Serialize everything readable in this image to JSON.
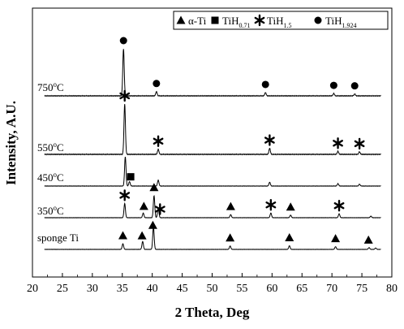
{
  "chart_data": {
    "type": "line",
    "xlabel": "2 Theta, Deg",
    "ylabel": "Intensity, A.U.",
    "xlim": [
      20,
      80
    ],
    "xticks": [
      20,
      25,
      30,
      35,
      40,
      45,
      50,
      55,
      60,
      65,
      70,
      75,
      80
    ],
    "grid": false,
    "legend_position": "top-right",
    "legend": [
      {
        "symbol": "triangle",
        "phase": "α-Ti",
        "label": "α-Ti"
      },
      {
        "symbol": "square",
        "phase": "TiH0.71",
        "base": "TiH",
        "sub": "0.71"
      },
      {
        "symbol": "asterisk",
        "phase": "TiH1.5",
        "base": "TiH",
        "sub": "1.5"
      },
      {
        "symbol": "circle",
        "phase": "TiH1.924",
        "base": "TiH",
        "sub": "1.924"
      }
    ],
    "series": [
      {
        "name": "750°C",
        "label_base": "750",
        "label_sup": "o",
        "label_unit": "C",
        "rel_intensity_max": 1.0,
        "peaks": [
          [
            35.2,
            1.0
          ],
          [
            40.7,
            0.09
          ],
          [
            58.9,
            0.07
          ],
          [
            70.3,
            0.05
          ],
          [
            73.8,
            0.04
          ]
        ],
        "markers": [
          {
            "symbol": "circle",
            "x": 35.2
          },
          {
            "symbol": "circle",
            "x": 40.7
          },
          {
            "symbol": "circle",
            "x": 58.9
          },
          {
            "symbol": "circle",
            "x": 70.3
          },
          {
            "symbol": "circle",
            "x": 73.8
          }
        ]
      },
      {
        "name": "550°C",
        "label_base": "550",
        "label_sup": "o",
        "label_unit": "C",
        "rel_intensity_max": 1.0,
        "peaks": [
          [
            35.4,
            1.0
          ],
          [
            41.0,
            0.1
          ],
          [
            59.6,
            0.12
          ],
          [
            71.0,
            0.06
          ],
          [
            74.6,
            0.05
          ]
        ],
        "markers": [
          {
            "symbol": "asterisk",
            "x": 35.4
          },
          {
            "symbol": "asterisk",
            "x": 41.0
          },
          {
            "symbol": "asterisk",
            "x": 59.6
          },
          {
            "symbol": "asterisk",
            "x": 71.0
          },
          {
            "symbol": "asterisk",
            "x": 74.6
          }
        ]
      },
      {
        "name": "450°C",
        "label_base": "450",
        "label_sup": "o",
        "label_unit": "C",
        "rel_intensity_max": 1.0,
        "peaks": [
          [
            35.5,
            1.0
          ],
          [
            36.2,
            0.15
          ],
          [
            41.0,
            0.2
          ],
          [
            59.6,
            0.13
          ],
          [
            71.0,
            0.08
          ],
          [
            74.6,
            0.06
          ]
        ],
        "markers": [
          {
            "symbol": "square",
            "x": 36.4
          }
        ]
      },
      {
        "name": "350°C",
        "label_base": "350",
        "label_sup": "o",
        "label_unit": "C",
        "rel_intensity_max": 1.0,
        "peaks": [
          [
            35.4,
            0.55
          ],
          [
            38.5,
            0.18
          ],
          [
            40.3,
            0.85
          ],
          [
            41.0,
            0.35
          ],
          [
            53.1,
            0.12
          ],
          [
            59.8,
            0.18
          ],
          [
            63.1,
            0.1
          ],
          [
            71.2,
            0.15
          ],
          [
            76.5,
            0.06
          ]
        ],
        "markers": [
          {
            "symbol": "asterisk",
            "x": 35.4
          },
          {
            "symbol": "triangle",
            "x": 38.6
          },
          {
            "symbol": "triangle",
            "x": 40.3
          },
          {
            "symbol": "asterisk",
            "x": 41.3
          },
          {
            "symbol": "triangle",
            "x": 53.1
          },
          {
            "symbol": "asterisk",
            "x": 59.8
          },
          {
            "symbol": "triangle",
            "x": 63.1
          },
          {
            "symbol": "asterisk",
            "x": 71.2
          }
        ]
      },
      {
        "name": "sponge Ti",
        "label_base": "sponge Ti",
        "label_sup": "",
        "label_unit": "",
        "rel_intensity_max": 1.0,
        "peaks": [
          [
            35.1,
            0.25
          ],
          [
            38.4,
            0.35
          ],
          [
            40.2,
            1.0
          ],
          [
            53.0,
            0.15
          ],
          [
            62.9,
            0.16
          ],
          [
            70.6,
            0.12
          ],
          [
            76.2,
            0.08
          ],
          [
            77.3,
            0.06
          ]
        ],
        "markers": [
          {
            "symbol": "triangle",
            "x": 35.1
          },
          {
            "symbol": "triangle",
            "x": 38.3
          },
          {
            "symbol": "triangle",
            "x": 40.1
          },
          {
            "symbol": "triangle",
            "x": 53.0
          },
          {
            "symbol": "triangle",
            "x": 62.9
          },
          {
            "symbol": "triangle",
            "x": 70.6
          },
          {
            "symbol": "triangle",
            "x": 76.1
          }
        ]
      }
    ]
  }
}
